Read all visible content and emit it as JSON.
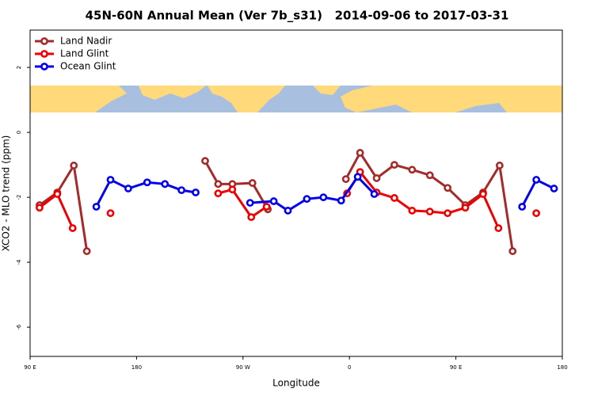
{
  "chart_data": {
    "type": "line",
    "title": "45N-60N Annual Mean (Ver 7b_s31)   2014-09-06 to 2017-03-31",
    "xlabel": "Longitude",
    "ylabel": "XCO2 - MLO trend (ppm)",
    "xlim": [
      90,
      540
    ],
    "ylim": [
      -6.9,
      3.15
    ],
    "xticks": [
      {
        "value": 90,
        "label": "90 E"
      },
      180,
      {
        "value": 270,
        "label": "90 W"
      },
      {
        "value": 360,
        "label": "0"
      },
      {
        "value": 450,
        "label": "90 E"
      },
      {
        "value": 540,
        "label": "180"
      }
    ],
    "yticks": [
      2,
      0,
      -2,
      -4,
      -6
    ],
    "legend": "top-left",
    "series": [
      {
        "name": "Land Nadir",
        "color": "#a52a2a",
        "x": [
          98,
          113,
          127,
          138,
          null,
          238,
          249,
          261,
          278,
          291,
          null,
          357,
          369,
          383,
          398,
          413,
          428,
          443,
          458,
          473,
          487,
          498
        ],
        "values": [
          -2.24,
          -1.85,
          -1.02,
          -3.66,
          null,
          -0.88,
          -1.59,
          -1.59,
          -1.56,
          -2.37,
          null,
          -1.44,
          -0.63,
          -1.41,
          -1.0,
          -1.15,
          -1.32,
          -1.71,
          -2.24,
          -1.85,
          -1.02,
          -3.66
        ]
      },
      {
        "name": "Land Glint",
        "color": "#ee0000",
        "x": [
          98,
          113,
          126,
          null,
          158,
          null,
          249,
          261,
          277,
          290,
          null,
          358,
          369,
          383,
          398,
          413,
          428,
          443,
          458,
          473,
          486,
          null,
          518
        ],
        "values": [
          -2.32,
          -1.9,
          -2.95,
          null,
          -2.49,
          null,
          -1.88,
          -1.76,
          -2.61,
          -2.29,
          null,
          -1.88,
          -1.22,
          -1.85,
          -2.02,
          -2.41,
          -2.44,
          -2.49,
          -2.32,
          -1.9,
          -2.95,
          null,
          -2.49
        ]
      },
      {
        "name": "Ocean Glint",
        "color": "#0000ee",
        "x": [
          146,
          158,
          173,
          189,
          204,
          218,
          230,
          null,
          276,
          296,
          308,
          324,
          338,
          353,
          367,
          381,
          null,
          506,
          518,
          533
        ],
        "values": [
          -2.29,
          -1.46,
          -1.73,
          -1.54,
          -1.59,
          -1.78,
          -1.85,
          null,
          -2.17,
          -2.12,
          -2.41,
          -2.05,
          -2.0,
          -2.1,
          -1.37,
          -1.9,
          null,
          -2.29,
          -1.46,
          -1.73
        ]
      }
    ]
  }
}
